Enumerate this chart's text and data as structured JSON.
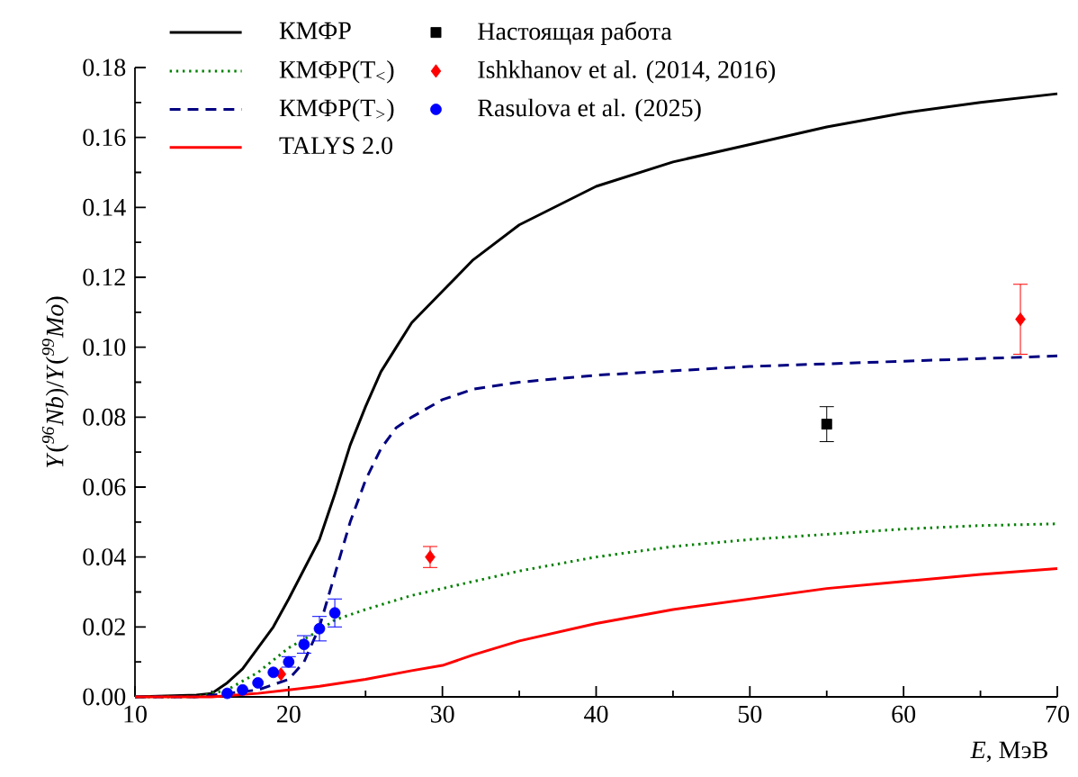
{
  "chart_data": {
    "type": "line",
    "xlabel": "*E*, МэВ",
    "ylabel": "*Y*(*$^{96}$Nb*)/*Y*(*$^{99}$Mo*)",
    "xlim": [
      10,
      70
    ],
    "ylim": [
      0,
      0.18
    ],
    "xticks": [
      10,
      20,
      30,
      40,
      50,
      60,
      70
    ],
    "yticks": [
      {
        "value": 0,
        "label": "0.00"
      },
      {
        "value": 0.02,
        "label": "0.02"
      },
      {
        "value": 0.04,
        "label": "0.04"
      },
      {
        "value": 0.06,
        "label": "0.06"
      },
      {
        "value": 0.08,
        "label": "0.08"
      },
      {
        "value": 0.1,
        "label": "0.10"
      },
      {
        "value": 0.12,
        "label": "0.12"
      },
      {
        "value": 0.14,
        "label": "0.14"
      },
      {
        "value": 0.16,
        "label": "0.16"
      },
      {
        "value": 0.18,
        "label": "0.18"
      }
    ],
    "legend": "top left",
    "series": [
      {
        "name": "КМФР",
        "type": "line",
        "line_style": "solid",
        "marker": "none",
        "color": "#000000",
        "x": [
          10,
          14,
          15,
          16,
          17,
          18,
          19,
          20,
          22,
          23,
          24,
          25,
          26,
          27,
          28,
          30,
          32,
          35,
          40,
          45,
          50,
          55,
          60,
          65,
          70
        ],
        "values": [
          0,
          0.0005,
          0.001,
          0.004,
          0.008,
          0.014,
          0.02,
          0.028,
          0.045,
          0.058,
          0.072,
          0.083,
          0.093,
          0.1,
          0.107,
          0.116,
          0.125,
          0.135,
          0.146,
          0.153,
          0.158,
          0.163,
          0.167,
          0.17,
          0.1725
        ]
      },
      {
        "name": "КМФР(T$_{<}$)",
        "type": "line",
        "line_style": "dotted",
        "marker": "none",
        "color": "#008000",
        "x": [
          10,
          14,
          16,
          18,
          20,
          22,
          23,
          25,
          28,
          30,
          35,
          40,
          45,
          50,
          55,
          60,
          65,
          70
        ],
        "values": [
          0,
          0,
          0.002,
          0.007,
          0.014,
          0.019,
          0.022,
          0.025,
          0.029,
          0.031,
          0.036,
          0.04,
          0.043,
          0.045,
          0.0465,
          0.048,
          0.049,
          0.0495
        ]
      },
      {
        "name": "КМФР(T$_{>}$)",
        "type": "line",
        "line_style": "dashed",
        "marker": "none",
        "color": "#000080",
        "x": [
          10,
          14,
          16,
          18,
          20,
          21,
          22,
          23,
          24,
          25,
          26,
          27,
          28,
          30,
          32,
          35,
          40,
          50,
          60,
          70
        ],
        "values": [
          0,
          0,
          0.001,
          0.002,
          0.005,
          0.01,
          0.02,
          0.035,
          0.05,
          0.062,
          0.071,
          0.077,
          0.08,
          0.085,
          0.088,
          0.09,
          0.092,
          0.0945,
          0.096,
          0.0975
        ]
      },
      {
        "name": "TALYS 2.0",
        "type": "line",
        "line_style": "solid",
        "marker": "none",
        "color": "#ff0000",
        "x": [
          10,
          15,
          18,
          20,
          22,
          25,
          28,
          30,
          32,
          35,
          40,
          45,
          50,
          55,
          60,
          65,
          70
        ],
        "values": [
          0,
          0,
          0.001,
          0.002,
          0.003,
          0.005,
          0.0075,
          0.009,
          0.012,
          0.016,
          0.021,
          0.025,
          0.028,
          0.031,
          0.033,
          0.035,
          0.0367
        ]
      },
      {
        "name": "Настоящая работа",
        "type": "scatter",
        "marker": "square",
        "color": "#000000",
        "x": [
          55
        ],
        "values": [
          0.078
        ],
        "errors": [
          0.005
        ]
      },
      {
        "name": "Ishkhanov et al. (2014, 2016)",
        "type": "scatter",
        "marker": "diamond",
        "color": "#ff0000",
        "x": [
          19.5,
          29.2,
          67.6
        ],
        "values": [
          0.0065,
          0.04,
          0.108
        ],
        "errors": [
          null,
          0.003,
          0.01
        ]
      },
      {
        "name": "Rasulova et al. (2025)",
        "type": "scatter",
        "marker": "circle",
        "color": "#0000ff",
        "x": [
          16,
          17,
          18,
          19,
          20,
          21,
          22,
          23
        ],
        "values": [
          0.001,
          0.002,
          0.004,
          0.007,
          0.01,
          0.015,
          0.0195,
          0.024
        ],
        "errors": [
          null,
          null,
          null,
          null,
          0.0015,
          0.0025,
          0.0035,
          0.004
        ]
      }
    ]
  }
}
